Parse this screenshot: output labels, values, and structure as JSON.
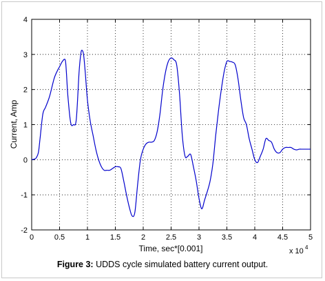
{
  "chart_data": {
    "type": "line",
    "title": "",
    "xlabel": "Time, sec*[0.001]",
    "ylabel": "Current, Amp",
    "x_multiplier_label": "x 10",
    "x_multiplier_exponent": "4",
    "xlim": [
      0,
      5
    ],
    "ylim": [
      -2,
      4
    ],
    "xticks": [
      "0",
      "0.5",
      "1",
      "1.5",
      "2",
      "2.5",
      "3",
      "3.5",
      "4",
      "4.5",
      "5"
    ],
    "yticks": [
      "-2",
      "-1",
      "0",
      "1",
      "2",
      "3",
      "4"
    ],
    "grid": true,
    "line_color": "#0000cc",
    "series": [
      {
        "x": [
          0,
          0.05,
          0.08,
          0.12,
          0.15,
          0.2,
          0.25,
          0.32,
          0.4,
          0.45,
          0.5,
          0.55,
          0.6,
          0.62,
          0.65,
          0.7,
          0.75,
          0.8,
          0.85,
          0.88,
          0.9,
          0.93,
          0.96,
          1.0,
          1.05,
          1.1,
          1.15,
          1.2,
          1.25,
          1.3,
          1.35,
          1.4,
          1.45,
          1.5,
          1.55,
          1.6,
          1.65,
          1.7,
          1.75,
          1.8,
          1.85,
          1.9,
          1.95,
          2.0,
          2.05,
          2.1,
          2.15,
          2.2,
          2.25,
          2.3,
          2.35,
          2.4,
          2.45,
          2.5,
          2.55,
          2.6,
          2.65,
          2.7,
          2.75,
          2.8,
          2.85,
          2.9,
          2.95,
          3.0,
          3.05,
          3.1,
          3.15,
          3.2,
          3.25,
          3.3,
          3.35,
          3.4,
          3.45,
          3.5,
          3.55,
          3.6,
          3.65,
          3.7,
          3.75,
          3.8,
          3.85,
          3.9,
          3.95,
          4.0,
          4.05,
          4.1,
          4.15,
          4.2,
          4.25,
          4.3,
          4.35,
          4.4,
          4.45,
          4.5,
          4.55,
          4.6,
          4.65,
          4.7,
          4.75,
          4.8,
          4.85,
          4.9,
          4.95,
          5.0
        ],
        "values": [
          0.0,
          0.02,
          0.05,
          0.2,
          0.6,
          1.3,
          1.5,
          1.8,
          2.3,
          2.5,
          2.65,
          2.8,
          2.85,
          2.55,
          1.8,
          1.05,
          1.0,
          1.15,
          2.5,
          3.0,
          3.12,
          3.0,
          2.5,
          1.7,
          1.1,
          0.7,
          0.3,
          0.0,
          -0.2,
          -0.3,
          -0.3,
          -0.3,
          -0.25,
          -0.2,
          -0.2,
          -0.25,
          -0.6,
          -1.0,
          -1.35,
          -1.6,
          -1.5,
          -0.7,
          0.0,
          0.3,
          0.45,
          0.5,
          0.5,
          0.55,
          0.8,
          1.3,
          2.0,
          2.5,
          2.8,
          2.9,
          2.85,
          2.7,
          1.9,
          0.7,
          0.1,
          0.1,
          0.15,
          -0.2,
          -0.6,
          -1.1,
          -1.4,
          -1.15,
          -0.9,
          -0.6,
          -0.1,
          0.7,
          1.4,
          2.0,
          2.5,
          2.8,
          2.8,
          2.78,
          2.7,
          2.3,
          1.7,
          1.2,
          1.0,
          0.6,
          0.3,
          0.0,
          -0.08,
          0.1,
          0.3,
          0.6,
          0.55,
          0.5,
          0.3,
          0.2,
          0.2,
          0.3,
          0.35,
          0.35,
          0.35,
          0.3,
          0.28,
          0.3,
          0.3,
          0.3,
          0.3,
          0.3
        ]
      }
    ]
  },
  "caption": {
    "lead": "Figure 3:",
    "text": " UDDS cycle simulated battery current output."
  }
}
